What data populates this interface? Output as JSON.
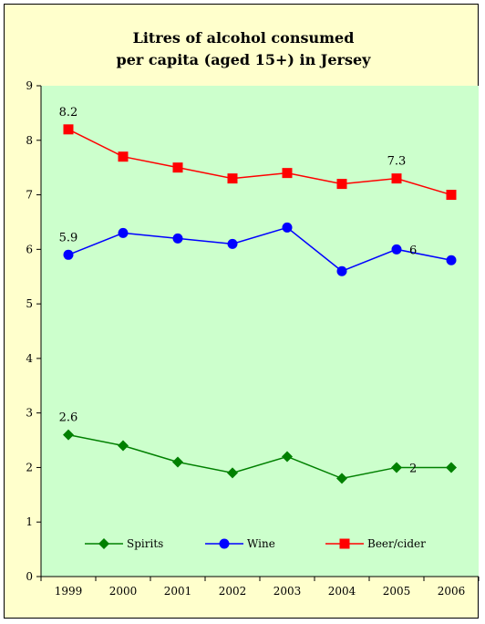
{
  "chart_data": {
    "type": "line",
    "title": "Litres of alcohol consumed per capita (aged 15+) in Jersey",
    "title_lines": [
      "Litres of alcohol consumed",
      "per capita (aged 15+) in Jersey"
    ],
    "x": [
      "1999",
      "2000",
      "2001",
      "2002",
      "2003",
      "2004",
      "2005",
      "2006"
    ],
    "ylim": [
      0,
      9
    ],
    "yticks": [
      "0",
      "1",
      "2",
      "3",
      "4",
      "5",
      "6",
      "7",
      "8",
      "9"
    ],
    "xlabel": "",
    "ylabel": "",
    "grid": false,
    "legend_position": "bottom-inside",
    "series": [
      {
        "name": "Spirits",
        "color": "#008000",
        "marker": "diamond",
        "values": [
          2.6,
          2.4,
          2.1,
          1.9,
          2.2,
          1.8,
          2.0,
          2.0
        ],
        "labels": [
          {
            "index": 0,
            "text": "2.6"
          },
          {
            "index": 6,
            "text": "2"
          }
        ]
      },
      {
        "name": "Wine",
        "color": "#0000ff",
        "marker": "circle",
        "values": [
          5.9,
          6.3,
          6.2,
          6.1,
          6.4,
          5.6,
          6.0,
          5.8
        ],
        "labels": [
          {
            "index": 0,
            "text": "5.9"
          },
          {
            "index": 6,
            "text": "6"
          }
        ]
      },
      {
        "name": "Beer/cider",
        "color": "#ff0000",
        "marker": "square",
        "values": [
          8.2,
          7.7,
          7.5,
          7.3,
          7.4,
          7.2,
          7.3,
          7.0
        ],
        "labels": [
          {
            "index": 0,
            "text": "8.2"
          },
          {
            "index": 6,
            "text": "7.3"
          }
        ]
      }
    ],
    "colors": {
      "frame_background": "#ffffcc",
      "plot_background": "#ccffcc"
    }
  }
}
